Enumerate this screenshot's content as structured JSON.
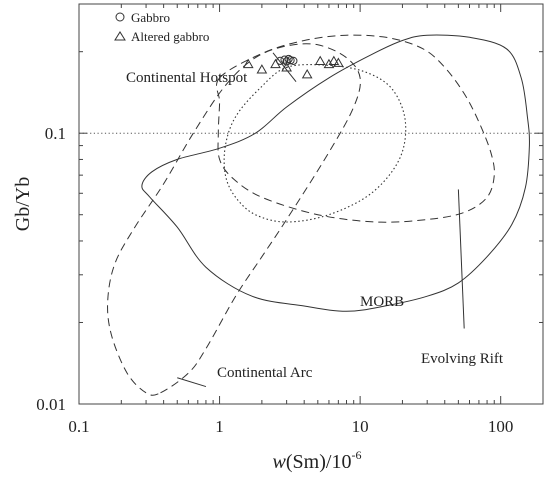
{
  "chart_data": {
    "type": "scatter",
    "xscale": "log",
    "yscale": "log",
    "xlim": [
      0.1,
      200
    ],
    "ylim": [
      0.01,
      0.3
    ],
    "xticks": [
      0.1,
      1,
      10,
      100
    ],
    "xtick_labels": [
      "0.1",
      "1",
      "10",
      "100"
    ],
    "yticks": [
      0.01,
      0.1
    ],
    "ytick_labels": [
      "0.01",
      "0.1"
    ],
    "xlabel": "w(Sm)/10",
    "xlabel_exponent": "-6",
    "ylabel": "Gb/Yb",
    "reference_line": {
      "y": 0.1,
      "style": "dotted"
    },
    "legend_position": "top-left",
    "series": [
      {
        "name": "Gabbro",
        "marker": "circle",
        "points": [
          [
            2.7,
            0.185
          ],
          [
            2.9,
            0.187
          ],
          [
            3.0,
            0.184
          ],
          [
            3.2,
            0.186
          ],
          [
            3.35,
            0.185
          ],
          [
            3.1,
            0.188
          ]
        ]
      },
      {
        "name": "Altered gabbro",
        "marker": "triangle",
        "points": [
          [
            1.6,
            0.18
          ],
          [
            2.0,
            0.172
          ],
          [
            2.5,
            0.18
          ],
          [
            3.0,
            0.175
          ],
          [
            4.2,
            0.165
          ],
          [
            5.2,
            0.185
          ],
          [
            6.0,
            0.18
          ],
          [
            6.5,
            0.185
          ],
          [
            7.0,
            0.182
          ]
        ]
      }
    ],
    "fields": [
      {
        "name": "Continental Hotspot",
        "style": "long-dash",
        "points": [
          [
            1.0,
            0.16
          ],
          [
            2.0,
            0.197
          ],
          [
            4.0,
            0.22
          ],
          [
            8.0,
            0.23
          ],
          [
            16.0,
            0.225
          ],
          [
            28.0,
            0.205
          ],
          [
            40.0,
            0.175
          ],
          [
            55.0,
            0.14
          ],
          [
            70.0,
            0.11
          ],
          [
            85.0,
            0.085
          ],
          [
            90.0,
            0.07
          ],
          [
            80.0,
            0.058
          ],
          [
            55.0,
            0.051
          ],
          [
            30.0,
            0.048
          ],
          [
            13.0,
            0.047
          ],
          [
            5.0,
            0.05
          ],
          [
            2.0,
            0.058
          ],
          [
            1.25,
            0.068
          ],
          [
            1.0,
            0.08
          ],
          [
            0.98,
            0.1
          ],
          [
            1.0,
            0.13
          ],
          [
            1.0,
            0.16
          ]
        ]
      },
      {
        "name": "Continental Arc",
        "style": "long-dash",
        "points": [
          [
            0.38,
            0.011
          ],
          [
            0.6,
            0.013
          ],
          [
            0.8,
            0.016
          ],
          [
            1.3,
            0.025
          ],
          [
            2.0,
            0.035
          ],
          [
            3.0,
            0.048
          ],
          [
            6.0,
            0.085
          ],
          [
            9.0,
            0.125
          ],
          [
            10.0,
            0.16
          ],
          [
            8.0,
            0.19
          ],
          [
            5.0,
            0.212
          ],
          [
            3.0,
            0.21
          ],
          [
            1.8,
            0.19
          ],
          [
            1.1,
            0.15
          ],
          [
            0.65,
            0.1
          ],
          [
            0.4,
            0.065
          ],
          [
            0.25,
            0.045
          ],
          [
            0.18,
            0.033
          ],
          [
            0.16,
            0.024
          ],
          [
            0.17,
            0.018
          ],
          [
            0.22,
            0.013
          ],
          [
            0.3,
            0.011
          ],
          [
            0.38,
            0.011
          ]
        ]
      },
      {
        "name": "MORB",
        "style": "dotted",
        "points": [
          [
            3.0,
            0.175
          ],
          [
            6.0,
            0.178
          ],
          [
            11.0,
            0.168
          ],
          [
            17.0,
            0.145
          ],
          [
            21.0,
            0.11
          ],
          [
            19.0,
            0.08
          ],
          [
            12.0,
            0.06
          ],
          [
            6.0,
            0.05
          ],
          [
            3.0,
            0.047
          ],
          [
            1.8,
            0.05
          ],
          [
            1.3,
            0.058
          ],
          [
            1.1,
            0.07
          ],
          [
            1.1,
            0.09
          ],
          [
            1.3,
            0.115
          ],
          [
            1.9,
            0.145
          ],
          [
            3.0,
            0.175
          ]
        ]
      },
      {
        "name": "Evolving Rift",
        "style": "solid",
        "points": [
          [
            30.0,
            0.23
          ],
          [
            60.0,
            0.226
          ],
          [
            110.0,
            0.205
          ],
          [
            140.0,
            0.16
          ],
          [
            155.0,
            0.115
          ],
          [
            160.0,
            0.09
          ],
          [
            150.0,
            0.063
          ],
          [
            120.0,
            0.046
          ],
          [
            80.0,
            0.035
          ],
          [
            50.0,
            0.028
          ],
          [
            30.0,
            0.025
          ],
          [
            15.0,
            0.023
          ],
          [
            8.0,
            0.022
          ],
          [
            4.0,
            0.023
          ],
          [
            1.7,
            0.025
          ],
          [
            0.8,
            0.032
          ],
          [
            0.5,
            0.045
          ],
          [
            0.32,
            0.058
          ],
          [
            0.28,
            0.064
          ],
          [
            0.33,
            0.072
          ],
          [
            0.5,
            0.08
          ],
          [
            1.0,
            0.088
          ],
          [
            1.8,
            0.1
          ],
          [
            3.0,
            0.125
          ],
          [
            6.0,
            0.16
          ],
          [
            12.0,
            0.195
          ],
          [
            20.0,
            0.22
          ],
          [
            30.0,
            0.23
          ]
        ]
      }
    ],
    "annotations": [
      {
        "text": "Continental Hotspot",
        "leader": [
          [
            2.4,
            0.198
          ],
          [
            3.5,
            0.155
          ]
        ]
      },
      {
        "text": "Continental Arc",
        "leader": [
          [
            0.5,
            0.0125
          ],
          [
            0.8,
            0.0116
          ]
        ]
      },
      {
        "text": "MORB"
      },
      {
        "text": "Evolving Rift",
        "leader": [
          [
            50.0,
            0.062
          ],
          [
            55.0,
            0.019
          ]
        ]
      }
    ]
  }
}
